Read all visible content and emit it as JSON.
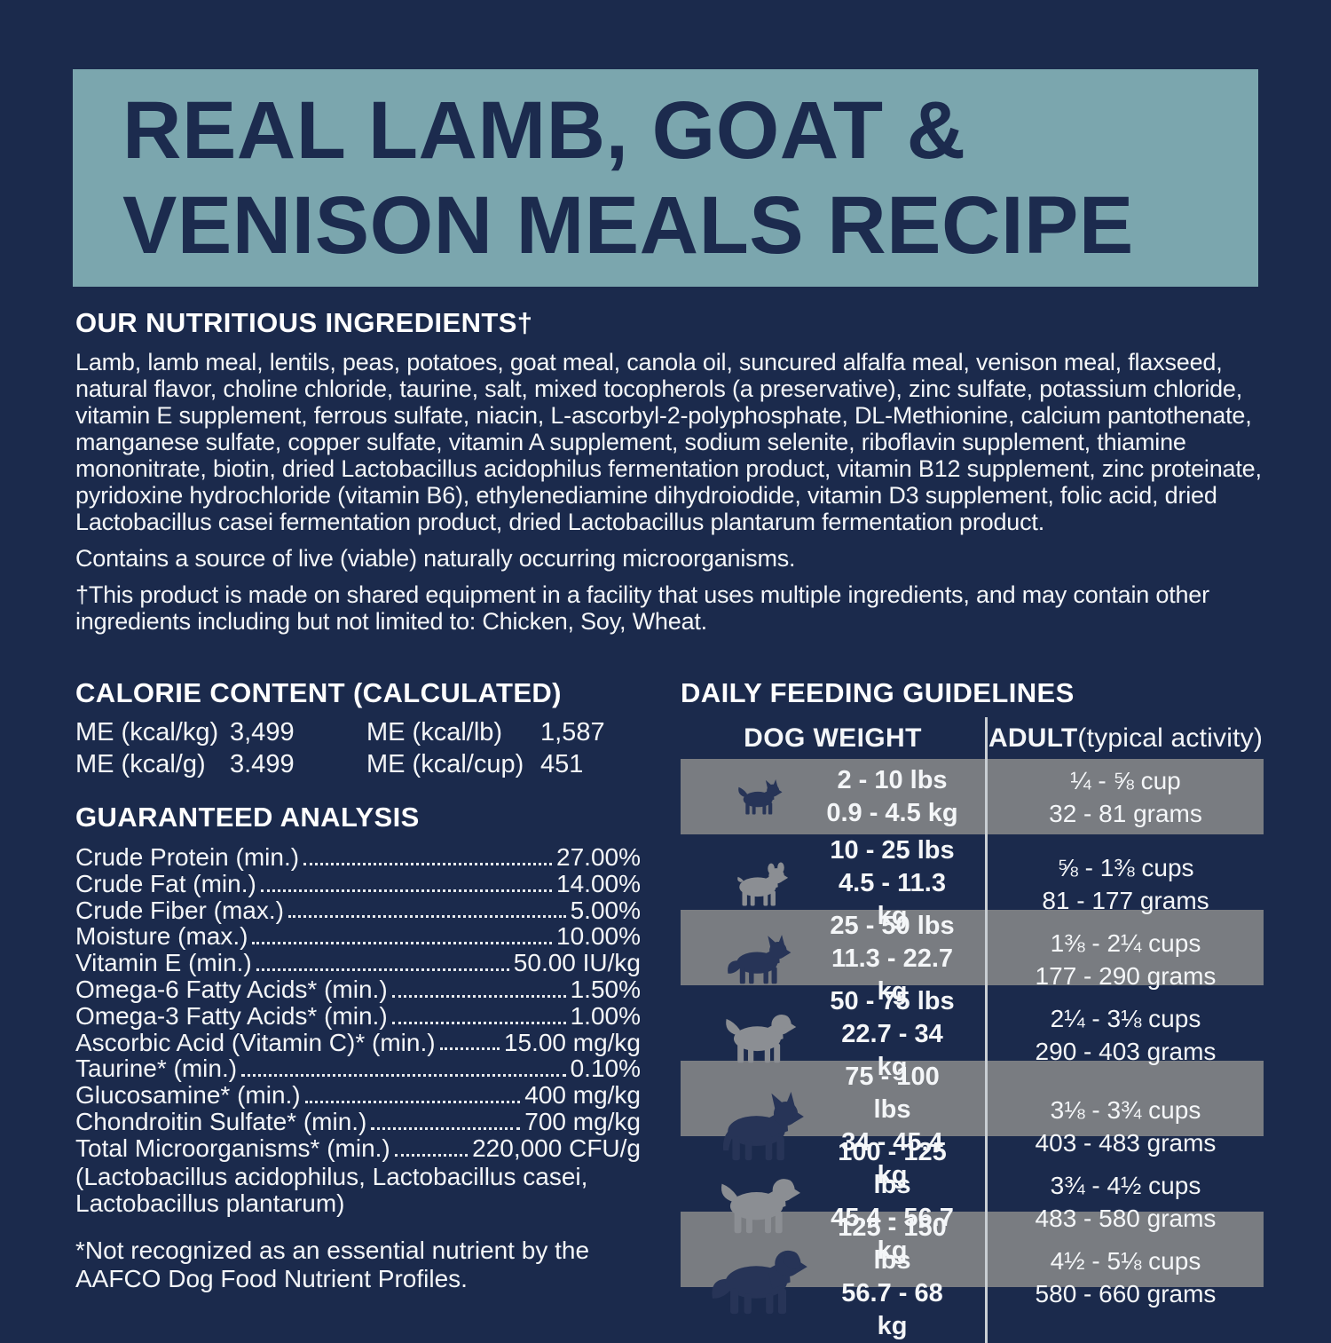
{
  "banner": {
    "line1": "REAL LAMB, GOAT &",
    "line2": "VENISON MEALS RECIPE"
  },
  "ingredients": {
    "heading": "OUR NUTRITIOUS INGREDIENTS†",
    "body": "Lamb, lamb meal, lentils, peas, potatoes, goat meal, canola oil, suncured alfalfa meal, venison meal, flaxseed, natural flavor, choline chloride, taurine, salt, mixed tocopherols (a preservative), zinc sulfate, potassium chloride, vitamin E supplement, ferrous sulfate, niacin, L-ascorbyl-2-polyphosphate, DL-Methionine, calcium pantothenate, manganese sulfate, copper sulfate, vitamin A supplement, sodium selenite, riboflavin supplement, thiamine mononitrate, biotin, dried Lactobacillus acidophilus fermentation product, vitamin B12 supplement, zinc proteinate, pyridoxine hydrochloride (vitamin B6), ethylenediamine dihydroiodide, vitamin D3 supplement, folic acid, dried Lactobacillus casei fermentation product, dried Lactobacillus plantarum fermentation product.",
    "microorganisms_note": "Contains a source of live (viable) naturally occurring microorganisms.",
    "shared_equipment_note": "†This product is made on shared equipment in a facility that uses multiple ingredients, and may contain other ingredients including but not limited to: Chicken, Soy, Wheat."
  },
  "calorie_content": {
    "heading": "CALORIE CONTENT (CALCULATED)",
    "entries": [
      {
        "label": "ME (kcal/kg)",
        "value": "3,499"
      },
      {
        "label": "ME (kcal/g)",
        "value": "3.499"
      },
      {
        "label": "ME (kcal/lb)",
        "value": "1,587"
      },
      {
        "label": "ME (kcal/cup)",
        "value": "451"
      }
    ]
  },
  "guaranteed_analysis": {
    "heading": "GUARANTEED ANALYSIS",
    "rows": [
      {
        "label": "Crude Protein (min.)",
        "value": "27.00%"
      },
      {
        "label": "Crude Fat (min.)",
        "value": "14.00%"
      },
      {
        "label": "Crude Fiber (max.)",
        "value": "5.00%"
      },
      {
        "label": "Moisture (max.)",
        "value": "10.00%"
      },
      {
        "label": "Vitamin E (min.)",
        "value": "50.00 IU/kg"
      },
      {
        "label": "Omega-6 Fatty Acids* (min.)",
        "value": "1.50%"
      },
      {
        "label": "Omega-3 Fatty Acids* (min.)",
        "value": "1.00%"
      },
      {
        "label": "Ascorbic Acid (Vitamin C)* (min.)",
        "value": "15.00 mg/kg"
      },
      {
        "label": "Taurine* (min.)",
        "value": "0.10%"
      },
      {
        "label": "Glucosamine* (min.)",
        "value": "400 mg/kg"
      },
      {
        "label": "Chondroitin Sulfate* (min.)",
        "value": "700 mg/kg"
      },
      {
        "label": "Total Microorganisms* (min.)",
        "value": "220,000 CFU/g"
      }
    ],
    "microorganisms_detail": "(Lactobacillus acidophilus, Lactobacillus casei, Lactobacillus plantarum)",
    "footnote": "*Not recognized as an essential nutrient by the AAFCO Dog Food Nutrient Profiles."
  },
  "feeding_guidelines": {
    "heading": "DAILY FEEDING GUIDELINES",
    "col1_header": "DOG WEIGHT",
    "col2_header_bold": "ADULT",
    "col2_header_rest": " (typical activity)",
    "rows": [
      {
        "icon": "chihuahua-icon",
        "lbs": "2 - 10 lbs",
        "kg": "0.9 - 4.5 kg",
        "cups": "¼ - ⅝ cup",
        "grams": "32 - 81 grams"
      },
      {
        "icon": "french-bulldog-icon",
        "lbs": "10 - 25 lbs",
        "kg": "4.5 - 11.3 kg",
        "cups": "⅝ - 1⅜ cups",
        "grams": "81 - 177 grams"
      },
      {
        "icon": "terrier-icon",
        "lbs": "25 - 50 lbs",
        "kg": "11.3 - 22.7 kg",
        "cups": "1⅜ - 2¼ cups",
        "grams": "177 - 290 grams"
      },
      {
        "icon": "pit-bull-icon",
        "lbs": "50 - 75 lbs",
        "kg": "22.7 - 34 kg",
        "cups": "2¼ - 3⅛ cups",
        "grams": "290 - 403 grams"
      },
      {
        "icon": "great-dane-icon",
        "lbs": "75 - 100 lbs",
        "kg": "34 - 45.4 kg",
        "cups": "3⅛ - 3¾ cups",
        "grams": "403 - 483 grams"
      },
      {
        "icon": "mastiff-icon",
        "lbs": "100 - 125 lbs",
        "kg": "45.4 - 56.7 kg",
        "cups": "3¾ - 4½ cups",
        "grams": "483 - 580 grams"
      },
      {
        "icon": "bernese-icon",
        "lbs": "125 - 150 lbs",
        "kg": "56.7 - 68 kg",
        "cups": "4½ - 5⅛ cups",
        "grams": "580 - 660 grams"
      }
    ]
  },
  "colors": {
    "page_navy": "#1b2a4c",
    "banner_teal": "#7ba6ae",
    "title_navy": "#1c2b4e",
    "row_gray": "#797c81",
    "divider": "#c9ced3",
    "icon_navy": "#273457",
    "icon_gray": "#8b8e93",
    "text_white": "#f4f6f8"
  }
}
